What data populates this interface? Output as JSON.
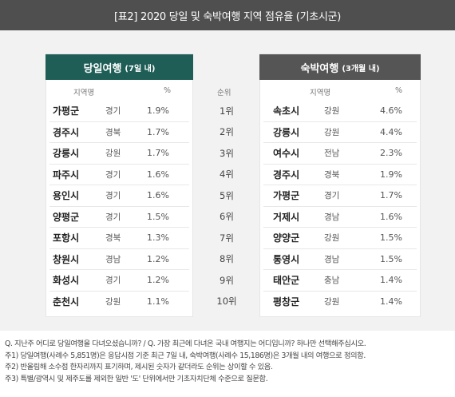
{
  "title": "[표2] 2020 당일 및 숙박여행 지역 점유율 (기초시군)",
  "day_trip": {
    "title": "당일여행",
    "subtitle": "(7일 내)",
    "col_region": "지역명",
    "col_pct": "%",
    "rows": [
      {
        "city": "가평군",
        "prov": "경기",
        "pct": "1.9%"
      },
      {
        "city": "경주시",
        "prov": "경북",
        "pct": "1.7%"
      },
      {
        "city": "강릉시",
        "prov": "강원",
        "pct": "1.7%"
      },
      {
        "city": "파주시",
        "prov": "경기",
        "pct": "1.6%"
      },
      {
        "city": "용인시",
        "prov": "경기",
        "pct": "1.6%"
      },
      {
        "city": "양평군",
        "prov": "경기",
        "pct": "1.5%"
      },
      {
        "city": "포항시",
        "prov": "경북",
        "pct": "1.3%"
      },
      {
        "city": "창원시",
        "prov": "경남",
        "pct": "1.2%"
      },
      {
        "city": "화성시",
        "prov": "경기",
        "pct": "1.2%"
      },
      {
        "city": "춘천시",
        "prov": "강원",
        "pct": "1.1%"
      }
    ]
  },
  "rank": {
    "col_label": "순위",
    "values": [
      "1위",
      "2위",
      "3위",
      "4위",
      "5위",
      "6위",
      "7위",
      "8위",
      "9위",
      "10위"
    ]
  },
  "overnight": {
    "title": "숙박여행",
    "subtitle": "(3개월 내)",
    "col_region": "지역명",
    "col_pct": "%",
    "rows": [
      {
        "city": "속초시",
        "prov": "강원",
        "pct": "4.6%"
      },
      {
        "city": "강릉시",
        "prov": "강원",
        "pct": "4.4%"
      },
      {
        "city": "여수시",
        "prov": "전남",
        "pct": "2.3%"
      },
      {
        "city": "경주시",
        "prov": "경북",
        "pct": "1.9%"
      },
      {
        "city": "가평군",
        "prov": "경기",
        "pct": "1.7%"
      },
      {
        "city": "거제시",
        "prov": "경남",
        "pct": "1.6%"
      },
      {
        "city": "양양군",
        "prov": "강원",
        "pct": "1.5%"
      },
      {
        "city": "통영시",
        "prov": "경남",
        "pct": "1.5%"
      },
      {
        "city": "태안군",
        "prov": "충남",
        "pct": "1.4%"
      },
      {
        "city": "평창군",
        "prov": "강원",
        "pct": "1.4%"
      }
    ]
  },
  "notes": [
    "Q. 지난주 어디로 당일여행을 다녀오셨습니까? / Q. 가장 최근에 다녀온 국내 여행지는 어디입니까? 하나만 선택해주십시오.",
    "주1) 당일여행(사례수 5,851명)은 응답시점 기준 최근 7일 내, 숙박여행(사례수 15,186명)은 3개월 내의 여행으로 정의함.",
    "주2) 반올림해 소수점 한자리까지 표기하며, 제시된 숫자가 같더라도 순위는 상이할 수 있음.",
    "주3) 특별/광역시 및 제주도를 제외한 일반 '도' 단위에서만 기초자치단체 수준으로 질문함."
  ]
}
